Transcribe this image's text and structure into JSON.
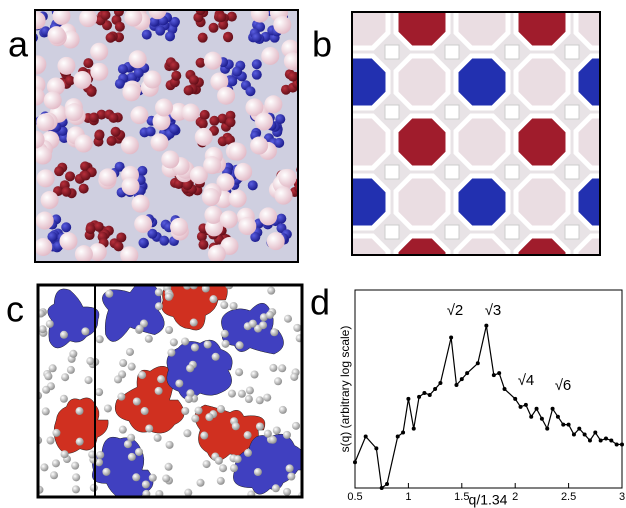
{
  "panel_labels": [
    "a",
    "b",
    "c",
    "d"
  ],
  "chart_data": {
    "type": "line",
    "xlabel": "q/1.34",
    "ylabel": "s(q) (arbitrary log scale)",
    "x": [
      0.5,
      0.6,
      0.7,
      0.75,
      0.8,
      0.9,
      0.95,
      1.0,
      1.05,
      1.1,
      1.15,
      1.2,
      1.25,
      1.3,
      1.4,
      1.45,
      1.5,
      1.55,
      1.65,
      1.73,
      1.8,
      1.85,
      1.9,
      2.0,
      2.05,
      2.1,
      2.15,
      2.2,
      2.25,
      2.3,
      2.35,
      2.4,
      2.45,
      2.5,
      2.55,
      2.6,
      2.65,
      2.7,
      2.75,
      2.8,
      2.85,
      2.9,
      2.95,
      3.0
    ],
    "values": [
      1.3,
      2.6,
      2.0,
      0.0,
      0.2,
      2.6,
      2.8,
      4.5,
      3.0,
      4.6,
      4.8,
      4.7,
      5.0,
      5.3,
      7.6,
      5.2,
      5.5,
      5.8,
      6.3,
      8.2,
      5.7,
      5.8,
      5.0,
      4.5,
      4.1,
      4.2,
      3.6,
      4.0,
      3.5,
      3.0,
      4.0,
      3.6,
      3.2,
      3.2,
      2.7,
      3.0,
      2.7,
      2.4,
      2.8,
      2.4,
      2.5,
      2.4,
      2.2,
      2.2
    ],
    "color": "#000000",
    "xlim": [
      0.5,
      3
    ],
    "xticks": [
      0.5,
      1,
      1.5,
      2,
      2.5,
      3
    ],
    "ylim": [
      0,
      10
    ],
    "annotations": [
      "√2",
      "√3",
      "√4",
      "√6"
    ]
  }
}
